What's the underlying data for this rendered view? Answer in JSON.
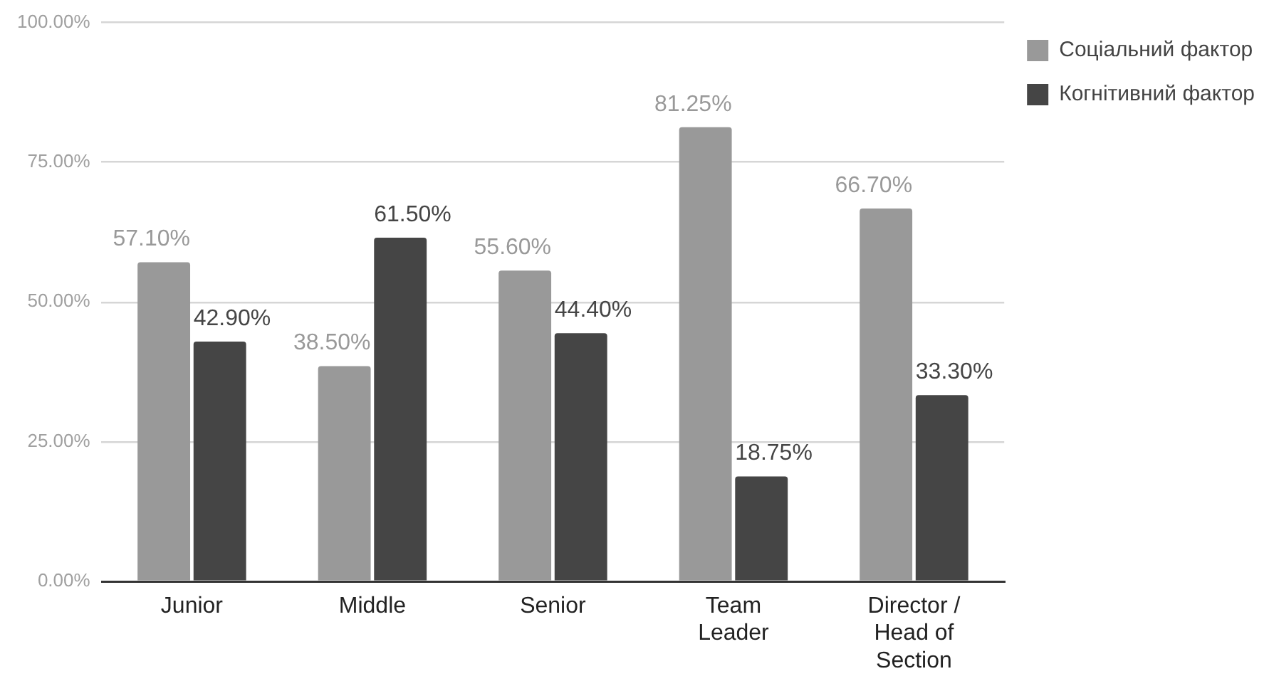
{
  "chart_data": {
    "type": "bar",
    "categories": [
      "Junior",
      "Middle",
      "Senior",
      "Team Leader",
      "Director / Head of Section"
    ],
    "series": [
      {
        "name": "Соціальний фактор",
        "color": "#999999",
        "values": [
          57.1,
          38.5,
          55.6,
          81.25,
          66.7
        ],
        "value_labels": [
          "57.10%",
          "38.50%",
          "55.60%",
          "81.25%",
          "66.70%"
        ]
      },
      {
        "name": "Когнітивний фактор",
        "color": "#454545",
        "values": [
          42.9,
          61.5,
          44.4,
          18.75,
          33.3
        ],
        "value_labels": [
          "42.90%",
          "61.50%",
          "44.40%",
          "18.75%",
          "33.30%"
        ]
      }
    ],
    "ylim": [
      0,
      100
    ],
    "yticks": [
      {
        "value": 0,
        "label": "0.00%"
      },
      {
        "value": 25,
        "label": "25.00%"
      },
      {
        "value": 50,
        "label": "50.00%"
      },
      {
        "value": 75,
        "label": "75.00%"
      },
      {
        "value": 100,
        "label": "100.00%"
      }
    ],
    "grid": "y",
    "legend": "top right"
  }
}
